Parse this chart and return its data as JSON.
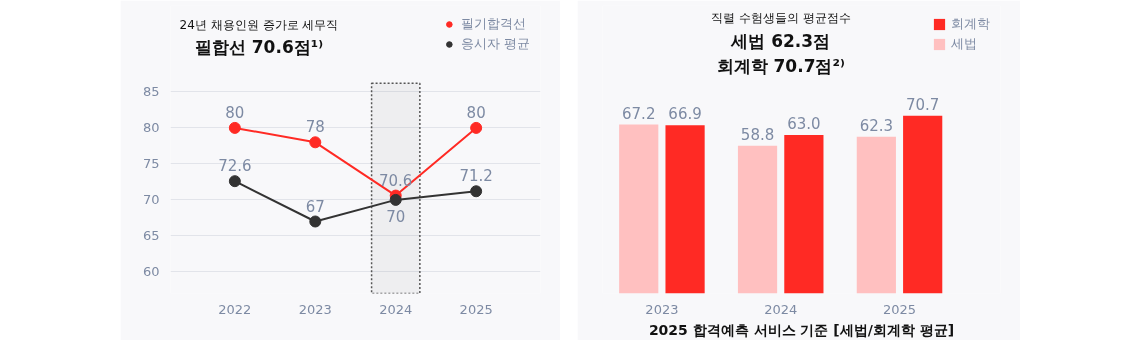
{
  "chart_data": [
    {
      "type": "line",
      "categories": [
        "2022",
        "2023",
        "2024",
        "2025"
      ],
      "series": [
        {
          "name": "필기합격선",
          "color": "#ff2a24",
          "values": [
            80,
            78,
            70.6,
            80
          ]
        },
        {
          "name": "응시자 평균",
          "color": "#333333",
          "values": [
            72.6,
            67,
            70,
            71.2
          ]
        }
      ],
      "ylim": [
        57,
        97
      ],
      "yticks": [
        60,
        65,
        70,
        75,
        80,
        85
      ],
      "grid": "y",
      "legend": "top right",
      "marker": "circle",
      "line_style": "solid",
      "data_labels": true,
      "bands": [
        {
          "axis": "x",
          "from": "2024",
          "to": "2024",
          "color": "#555555"
        }
      ],
      "annotations": [
        "24년 채용인원 증가로 세무직",
        "필합선 70.6점¹⁾"
      ]
    },
    {
      "type": "bar",
      "categories": [
        "2023",
        "2024",
        "2025"
      ],
      "xlabel": "2025 합격예측 서비스 기준 [세법/회계학 평균]",
      "series": [
        {
          "name": "세법",
          "color": "#ffc0c0",
          "values": [
            67.2,
            58.8,
            62.3
          ],
          "value_labels": [
            "67.2",
            "58.8",
            "62.3"
          ]
        },
        {
          "name": "회계학",
          "color": "#ff2a24",
          "values": [
            66.9,
            63.0,
            70.7
          ],
          "value_labels": [
            "66.9",
            "63.0",
            "70.7"
          ]
        }
      ],
      "legend": "top right",
      "tick_labels": "x",
      "annotations": [
        "직렬 수험생들의 평균점수",
        "세법 62.3점",
        "회계학 70.7점²⁾"
      ]
    }
  ]
}
